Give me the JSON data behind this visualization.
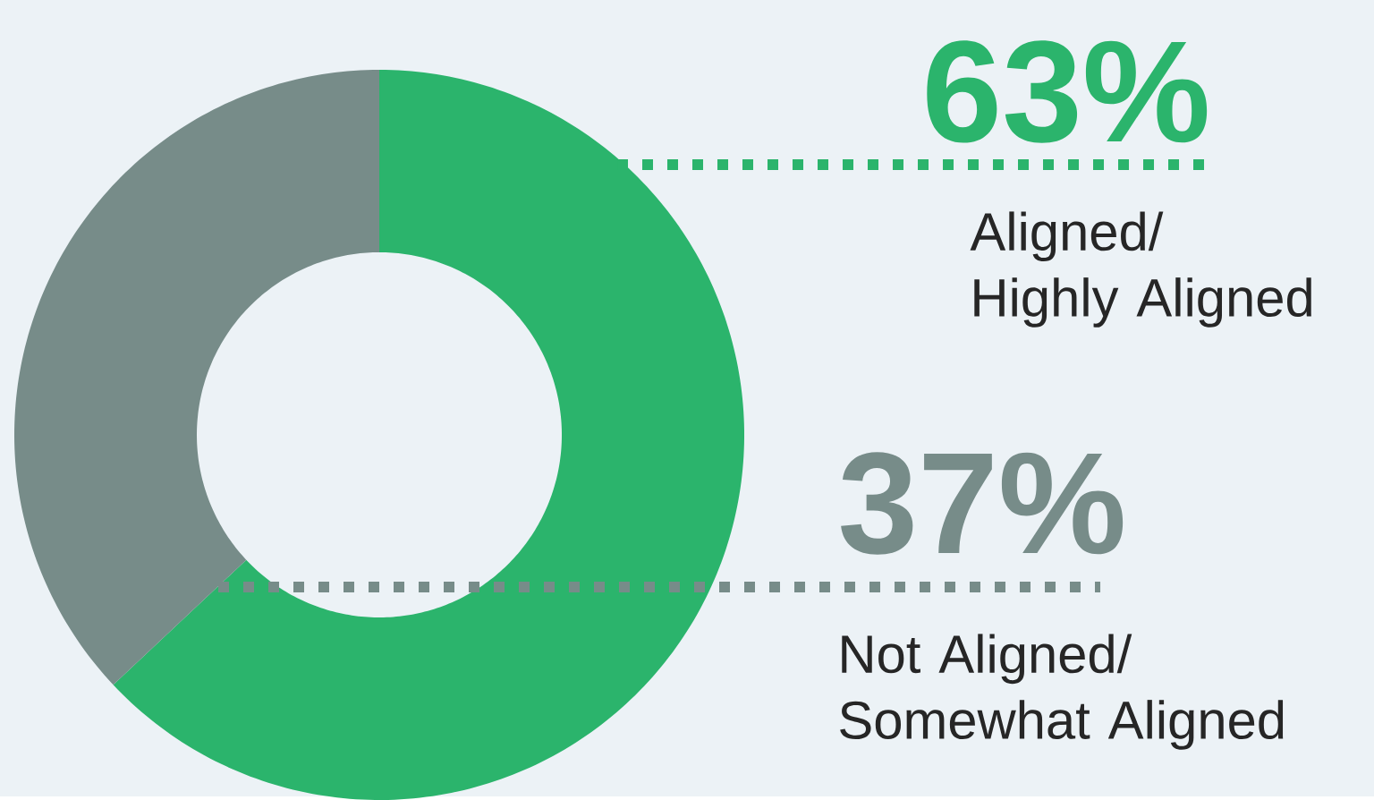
{
  "chart_data": {
    "type": "donut",
    "categories": [
      "Aligned/ Highly Aligned",
      "Not Aligned/ Somewhat Aligned"
    ],
    "values": [
      63,
      37
    ],
    "colors": [
      "#2bb46c",
      "#778c89"
    ],
    "value_labels": [
      "63%",
      "37%"
    ]
  }
}
